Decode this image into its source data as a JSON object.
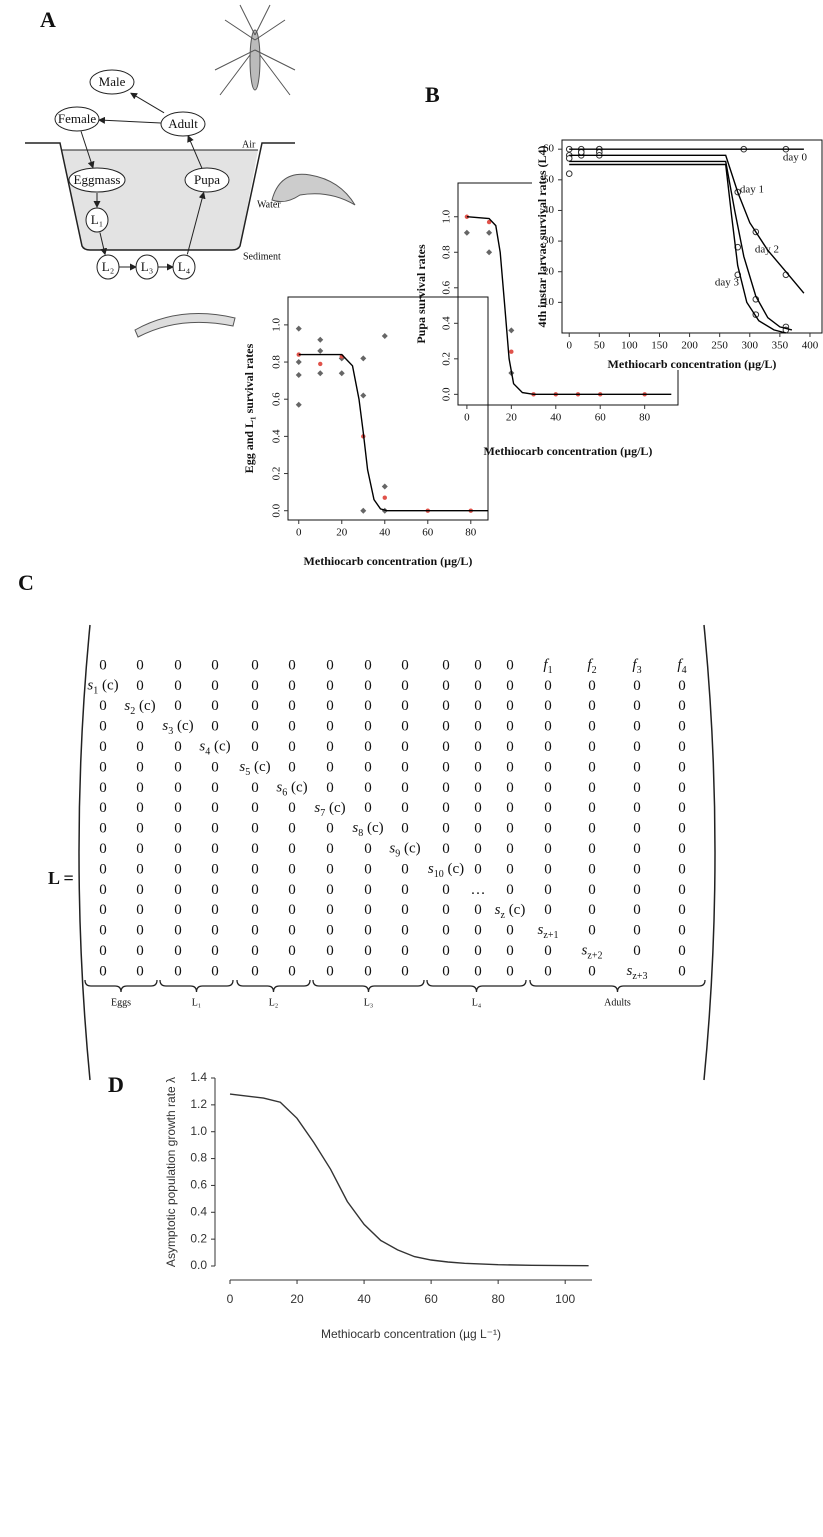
{
  "panel_labels": [
    "A",
    "B",
    "C",
    "D"
  ],
  "diagram": {
    "nodes": [
      "Male",
      "Female",
      "Adult",
      "Eggmass",
      "Pupa",
      "L₁",
      "L₂",
      "L₃",
      "L₄"
    ],
    "zones": [
      "Air",
      "Water",
      "Sediment"
    ]
  },
  "chart_data": [
    {
      "type": "scatter",
      "xlabel": "Methiocarb concentration (µg/L)",
      "ylabel": "Egg and L₁ survival rates",
      "xlim": [
        -5,
        88
      ],
      "ylim": [
        -0.05,
        1.15
      ],
      "xticks": [
        0,
        20,
        40,
        60,
        80
      ],
      "yticks": [
        {
          "value": 0,
          "label": "0.0"
        },
        0.2,
        0.4,
        0.6,
        0.8,
        {
          "value": 1,
          "label": "1.0"
        }
      ],
      "series": [
        {
          "type": "scatter",
          "marker": "diamond",
          "color": "#666666",
          "x": [
            0,
            0,
            0,
            0,
            10,
            10,
            10,
            20,
            20,
            30,
            30,
            30,
            40,
            40,
            40
          ],
          "values": [
            0.98,
            0.8,
            0.73,
            0.57,
            0.92,
            0.86,
            0.74,
            0.82,
            0.74,
            0.82,
            0.62,
            0,
            0.94,
            0.13,
            0
          ]
        },
        {
          "type": "scatter",
          "marker": "dot",
          "color": "#e0524a",
          "x": [
            0,
            10,
            20,
            30,
            40,
            60,
            80
          ],
          "values": [
            0.84,
            0.79,
            0.83,
            0.4,
            0.07,
            0,
            0
          ]
        },
        {
          "type": "line",
          "color": "#000000",
          "x": [
            0,
            20,
            25,
            28,
            30,
            32,
            35,
            38,
            41,
            88
          ],
          "values": [
            0.84,
            0.84,
            0.78,
            0.6,
            0.42,
            0.22,
            0.06,
            0.01,
            0,
            0
          ]
        }
      ]
    },
    {
      "type": "scatter",
      "xlabel": "Methiocarb concentration (µg/L)",
      "ylabel": "Pupa survival rates",
      "xlim": [
        -4,
        95
      ],
      "ylim": [
        -0.06,
        1.19
      ],
      "xticks": [
        0,
        20,
        40,
        60,
        80
      ],
      "yticks": [
        {
          "value": 0,
          "label": "0.0"
        },
        0.2,
        0.4,
        0.6,
        0.8,
        {
          "value": 1,
          "label": "1.0"
        }
      ],
      "series": [
        {
          "type": "scatter",
          "marker": "diamond",
          "color": "#666666",
          "x": [
            0,
            10,
            10,
            20,
            20
          ],
          "values": [
            0.91,
            0.91,
            0.8,
            0.12,
            0.36
          ]
        },
        {
          "type": "scatter",
          "marker": "dot",
          "color": "#e0524a",
          "x": [
            0,
            10,
            20,
            30,
            40,
            50,
            60,
            80
          ],
          "values": [
            1.0,
            0.97,
            0.24,
            0,
            0,
            0,
            0,
            0
          ]
        },
        {
          "type": "line",
          "color": "#000000",
          "x": [
            0,
            10,
            13,
            15,
            17,
            19,
            21,
            25,
            30,
            92
          ],
          "values": [
            1,
            0.99,
            0.95,
            0.8,
            0.5,
            0.2,
            0.06,
            0.01,
            0,
            0
          ]
        }
      ]
    },
    {
      "type": "line",
      "xlabel": "Methiocarb concentration (µg/L)",
      "ylabel": "4th instar larvae survival rates (L4)",
      "xlim": [
        -12,
        420
      ],
      "ylim": [
        0,
        63
      ],
      "xticks": [
        0,
        50,
        100,
        150,
        200,
        250,
        300,
        350,
        400
      ],
      "yticks": [
        10,
        20,
        30,
        40,
        50,
        60
      ],
      "annotations": [
        "day 0",
        "day 1",
        "day 2",
        "day 3"
      ],
      "series": [
        {
          "type": "scatter",
          "marker": "open",
          "color": "#333333",
          "x": [
            0,
            20,
            50,
            290,
            360
          ],
          "values": [
            60,
            60,
            60,
            60,
            60
          ]
        },
        {
          "type": "scatter",
          "marker": "open",
          "color": "#333333",
          "x": [
            0,
            20,
            50,
            280,
            310,
            360
          ],
          "values": [
            58,
            59,
            60,
            46,
            33,
            19
          ]
        },
        {
          "type": "scatter",
          "marker": "open",
          "color": "#333333",
          "x": [
            0,
            20,
            50,
            280,
            310,
            360
          ],
          "values": [
            57,
            58,
            59,
            28,
            11,
            2
          ]
        },
        {
          "type": "scatter",
          "marker": "open",
          "color": "#333333",
          "x": [
            0,
            20,
            50,
            280,
            310,
            360
          ],
          "values": [
            52,
            59,
            58,
            19,
            6,
            1
          ]
        },
        {
          "type": "line",
          "color": "#000000",
          "x": [
            0,
            390
          ],
          "values": [
            60,
            60
          ]
        },
        {
          "type": "line",
          "color": "#000000",
          "x": [
            0,
            260,
            280,
            300,
            330,
            360,
            390
          ],
          "values": [
            58,
            58,
            46,
            36,
            27,
            20,
            13
          ]
        },
        {
          "type": "line",
          "color": "#000000",
          "x": [
            0,
            260,
            275,
            290,
            310,
            330,
            350,
            370
          ],
          "values": [
            56,
            56,
            40,
            25,
            12,
            5,
            2,
            1
          ]
        },
        {
          "type": "line",
          "color": "#000000",
          "x": [
            0,
            260,
            270,
            280,
            295,
            315,
            340,
            360
          ],
          "values": [
            55,
            55,
            38,
            22,
            10,
            4,
            1,
            0
          ]
        }
      ]
    },
    {
      "type": "line",
      "xlabel": "Methiocarb concentration (µg L⁻¹)",
      "ylabel": "Asymptotic population growth rate λ",
      "xlim": [
        0,
        108
      ],
      "ylim": [
        0,
        1.4
      ],
      "xticks": [
        0,
        20,
        40,
        60,
        80,
        100
      ],
      "yticks": [
        {
          "value": 0,
          "label": "0.0"
        },
        0.2,
        0.4,
        0.6,
        0.8,
        {
          "value": 1,
          "label": "1.0"
        },
        1.2,
        1.4
      ],
      "series": [
        {
          "type": "line",
          "color": "#333333",
          "x": [
            0,
            10,
            15,
            20,
            25,
            30,
            35,
            40,
            45,
            50,
            55,
            60,
            65,
            70,
            80,
            90,
            100,
            107
          ],
          "values": [
            1.28,
            1.25,
            1.22,
            1.1,
            0.92,
            0.72,
            0.48,
            0.31,
            0.19,
            0.12,
            0.07,
            0.045,
            0.03,
            0.02,
            0.01,
            0.005,
            0.003,
            0.002
          ]
        }
      ]
    }
  ],
  "matrix": {
    "lhs": "L =",
    "groups": [
      "Eggs",
      "L₁",
      "L₂",
      "L₃",
      "L₄",
      "Adults"
    ],
    "rows": [
      [
        "0",
        "0",
        "0",
        "0",
        "0",
        "0",
        "0",
        "0",
        "0",
        "0",
        "0",
        "0",
        {
          "base": "f",
          "sub": "1"
        },
        {
          "base": "f",
          "sub": "2"
        },
        {
          "base": "f",
          "sub": "3"
        },
        {
          "base": "f",
          "sub": "4"
        }
      ],
      [
        {
          "base": "s",
          "sub": "1",
          "tail": " (c)"
        },
        "0",
        "0",
        "0",
        "0",
        "0",
        "0",
        "0",
        "0",
        "0",
        "0",
        "0",
        "0",
        "0",
        "0",
        "0"
      ],
      [
        "0",
        {
          "base": "s",
          "sub": "2",
          "tail": " (c)"
        },
        "0",
        "0",
        "0",
        "0",
        "0",
        "0",
        "0",
        "0",
        "0",
        "0",
        "0",
        "0",
        "0",
        "0"
      ],
      [
        "0",
        "0",
        {
          "base": "s",
          "sub": "3",
          "tail": " (c)"
        },
        "0",
        "0",
        "0",
        "0",
        "0",
        "0",
        "0",
        "0",
        "0",
        "0",
        "0",
        "0",
        "0"
      ],
      [
        "0",
        "0",
        "0",
        {
          "base": "s",
          "sub": "4",
          "tail": " (c)"
        },
        "0",
        "0",
        "0",
        "0",
        "0",
        "0",
        "0",
        "0",
        "0",
        "0",
        "0",
        "0"
      ],
      [
        "0",
        "0",
        "0",
        "0",
        {
          "base": "s",
          "sub": "5",
          "tail": " (c)"
        },
        "0",
        "0",
        "0",
        "0",
        "0",
        "0",
        "0",
        "0",
        "0",
        "0",
        "0"
      ],
      [
        "0",
        "0",
        "0",
        "0",
        "0",
        {
          "base": "s",
          "sub": "6",
          "tail": " (c)"
        },
        "0",
        "0",
        "0",
        "0",
        "0",
        "0",
        "0",
        "0",
        "0",
        "0"
      ],
      [
        "0",
        "0",
        "0",
        "0",
        "0",
        "0",
        {
          "base": "s",
          "sub": "7",
          "tail": " (c)"
        },
        "0",
        "0",
        "0",
        "0",
        "0",
        "0",
        "0",
        "0",
        "0"
      ],
      [
        "0",
        "0",
        "0",
        "0",
        "0",
        "0",
        "0",
        {
          "base": "s",
          "sub": "8",
          "tail": " (c)"
        },
        "0",
        "0",
        "0",
        "0",
        "0",
        "0",
        "0",
        "0"
      ],
      [
        "0",
        "0",
        "0",
        "0",
        "0",
        "0",
        "0",
        "0",
        {
          "base": "s",
          "sub": "9",
          "tail": " (c)"
        },
        "0",
        "0",
        "0",
        "0",
        "0",
        "0",
        "0"
      ],
      [
        "0",
        "0",
        "0",
        "0",
        "0",
        "0",
        "0",
        "0",
        "0",
        {
          "base": "s",
          "sub": "10",
          "tail": " (c)"
        },
        "0",
        "0",
        "0",
        "0",
        "0",
        "0"
      ],
      [
        "0",
        "0",
        "0",
        "0",
        "0",
        "0",
        "0",
        "0",
        "0",
        "0",
        "…",
        "0",
        "0",
        "0",
        "0",
        "0"
      ],
      [
        "0",
        "0",
        "0",
        "0",
        "0",
        "0",
        "0",
        "0",
        "0",
        "0",
        "0",
        {
          "base": "s",
          "sub": "z",
          "tail": " (c)"
        },
        "0",
        "0",
        "0",
        "0"
      ],
      [
        "0",
        "0",
        "0",
        "0",
        "0",
        "0",
        "0",
        "0",
        "0",
        "0",
        "0",
        "0",
        {
          "base": "s",
          "sub": "z+1"
        },
        "0",
        "0",
        "0"
      ],
      [
        "0",
        "0",
        "0",
        "0",
        "0",
        "0",
        "0",
        "0",
        "0",
        "0",
        "0",
        "0",
        "0",
        {
          "base": "s",
          "sub": "z+2"
        },
        "0",
        "0"
      ],
      [
        "0",
        "0",
        "0",
        "0",
        "0",
        "0",
        "0",
        "0",
        "0",
        "0",
        "0",
        "0",
        "0",
        "0",
        {
          "base": "s",
          "sub": "z+3"
        },
        "0"
      ]
    ]
  }
}
